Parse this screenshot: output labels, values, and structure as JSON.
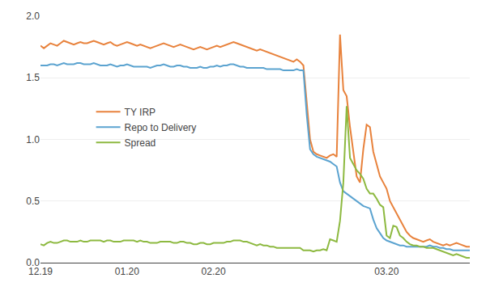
{
  "chart_data": {
    "type": "line",
    "categories": [
      "12.19",
      null,
      null,
      null,
      null,
      null,
      null,
      null,
      null,
      null,
      null,
      null,
      null,
      null,
      null,
      null,
      null,
      null,
      null,
      null,
      null,
      null,
      null,
      null,
      null,
      null,
      "01.20",
      null,
      null,
      null,
      null,
      null,
      null,
      null,
      null,
      null,
      null,
      null,
      null,
      null,
      null,
      null,
      null,
      null,
      null,
      null,
      null,
      null,
      null,
      null,
      null,
      null,
      "02.20",
      null,
      null,
      null,
      null,
      null,
      null,
      null,
      null,
      null,
      null,
      null,
      null,
      null,
      null,
      null,
      null,
      null,
      null,
      null,
      null,
      null,
      null,
      null,
      null,
      null,
      null,
      null,
      null,
      null,
      null,
      null,
      null,
      null,
      null,
      null,
      null,
      null,
      null,
      null,
      null,
      null,
      null,
      null,
      null,
      null,
      null,
      null,
      null,
      null,
      null,
      null,
      "03.20",
      null,
      null,
      null,
      null,
      null,
      null,
      null,
      null,
      null,
      null,
      null,
      null,
      null,
      null,
      null,
      null,
      null,
      null,
      null,
      null,
      null,
      null,
      null,
      null,
      null
    ],
    "series": [
      {
        "name": "TY IRP",
        "color": "#E8823C",
        "values": [
          1.76,
          1.74,
          1.76,
          1.78,
          1.77,
          1.76,
          1.78,
          1.8,
          1.79,
          1.78,
          1.77,
          1.78,
          1.79,
          1.78,
          1.78,
          1.79,
          1.8,
          1.79,
          1.78,
          1.77,
          1.78,
          1.79,
          1.77,
          1.76,
          1.77,
          1.78,
          1.79,
          1.78,
          1.77,
          1.76,
          1.77,
          1.76,
          1.75,
          1.74,
          1.75,
          1.76,
          1.77,
          1.78,
          1.77,
          1.76,
          1.75,
          1.76,
          1.77,
          1.76,
          1.75,
          1.74,
          1.73,
          1.74,
          1.75,
          1.74,
          1.73,
          1.74,
          1.75,
          1.76,
          1.75,
          1.76,
          1.77,
          1.78,
          1.79,
          1.78,
          1.77,
          1.76,
          1.75,
          1.74,
          1.73,
          1.72,
          1.73,
          1.72,
          1.71,
          1.7,
          1.69,
          1.68,
          1.67,
          1.66,
          1.65,
          1.64,
          1.63,
          1.65,
          1.63,
          1.6,
          1.3,
          1.0,
          0.9,
          0.88,
          0.87,
          0.86,
          0.85,
          0.87,
          0.88,
          0.86,
          1.85,
          1.4,
          1.35,
          1.1,
          0.9,
          0.7,
          0.65,
          0.92,
          1.12,
          1.1,
          0.9,
          0.8,
          0.7,
          0.65,
          0.6,
          0.5,
          0.45,
          0.4,
          0.35,
          0.3,
          0.25,
          0.22,
          0.2,
          0.19,
          0.18,
          0.17,
          0.18,
          0.19,
          0.17,
          0.16,
          0.15,
          0.14,
          0.15,
          0.14,
          0.15,
          0.16,
          0.15,
          0.14,
          0.13,
          0.13
        ]
      },
      {
        "name": "Repo to Delivery",
        "color": "#5BA3D0",
        "values": [
          1.6,
          1.6,
          1.6,
          1.61,
          1.61,
          1.6,
          1.61,
          1.62,
          1.61,
          1.61,
          1.61,
          1.62,
          1.62,
          1.61,
          1.61,
          1.61,
          1.62,
          1.61,
          1.6,
          1.6,
          1.6,
          1.61,
          1.6,
          1.59,
          1.6,
          1.6,
          1.61,
          1.6,
          1.59,
          1.59,
          1.59,
          1.59,
          1.59,
          1.58,
          1.59,
          1.6,
          1.6,
          1.61,
          1.6,
          1.59,
          1.59,
          1.6,
          1.6,
          1.59,
          1.59,
          1.58,
          1.58,
          1.58,
          1.59,
          1.58,
          1.58,
          1.59,
          1.59,
          1.6,
          1.59,
          1.6,
          1.6,
          1.61,
          1.61,
          1.6,
          1.59,
          1.59,
          1.58,
          1.58,
          1.58,
          1.58,
          1.58,
          1.58,
          1.57,
          1.57,
          1.57,
          1.57,
          1.57,
          1.56,
          1.56,
          1.56,
          1.56,
          1.57,
          1.56,
          1.56,
          1.2,
          0.92,
          0.88,
          0.86,
          0.85,
          0.84,
          0.83,
          0.82,
          0.8,
          0.78,
          0.65,
          0.58,
          0.56,
          0.54,
          0.52,
          0.5,
          0.48,
          0.46,
          0.45,
          0.44,
          0.35,
          0.28,
          0.24,
          0.2,
          0.18,
          0.17,
          0.16,
          0.15,
          0.14,
          0.14,
          0.13,
          0.13,
          0.13,
          0.13,
          0.13,
          0.13,
          0.13,
          0.14,
          0.13,
          0.13,
          0.12,
          0.12,
          0.11,
          0.11,
          0.1,
          0.1,
          0.1,
          0.1,
          0.1,
          0.1
        ]
      },
      {
        "name": "Spread",
        "color": "#8DB940",
        "values": [
          0.15,
          0.14,
          0.16,
          0.17,
          0.16,
          0.16,
          0.17,
          0.18,
          0.18,
          0.17,
          0.17,
          0.17,
          0.18,
          0.17,
          0.17,
          0.18,
          0.18,
          0.18,
          0.18,
          0.17,
          0.18,
          0.18,
          0.17,
          0.17,
          0.17,
          0.18,
          0.18,
          0.18,
          0.18,
          0.17,
          0.18,
          0.17,
          0.17,
          0.16,
          0.16,
          0.16,
          0.17,
          0.17,
          0.17,
          0.17,
          0.16,
          0.16,
          0.17,
          0.17,
          0.16,
          0.16,
          0.15,
          0.15,
          0.16,
          0.16,
          0.15,
          0.15,
          0.16,
          0.16,
          0.16,
          0.16,
          0.17,
          0.17,
          0.18,
          0.18,
          0.18,
          0.17,
          0.17,
          0.16,
          0.15,
          0.14,
          0.15,
          0.14,
          0.14,
          0.13,
          0.13,
          0.12,
          0.12,
          0.12,
          0.12,
          0.12,
          0.12,
          0.12,
          0.12,
          0.1,
          0.1,
          0.1,
          0.09,
          0.1,
          0.1,
          0.11,
          0.1,
          0.19,
          0.18,
          0.17,
          0.34,
          0.65,
          1.27,
          0.85,
          0.8,
          0.75,
          0.72,
          0.68,
          0.6,
          0.56,
          0.56,
          0.52,
          0.47,
          0.45,
          0.22,
          0.2,
          0.3,
          0.29,
          0.22,
          0.2,
          0.17,
          0.15,
          0.14,
          0.14,
          0.13,
          0.13,
          0.12,
          0.12,
          0.12,
          0.11,
          0.1,
          0.09,
          0.08,
          0.07,
          0.06,
          0.07,
          0.06,
          0.05,
          0.04,
          0.04
        ]
      }
    ],
    "ylim": [
      0.0,
      2.0
    ],
    "yticks": [
      {
        "value": 0.0,
        "label": "0.0"
      },
      0.5,
      {
        "value": 1.0,
        "label": "1.0"
      },
      1.5,
      {
        "value": 2.0,
        "label": "2.0"
      }
    ],
    "grid": true,
    "legend": "left"
  }
}
